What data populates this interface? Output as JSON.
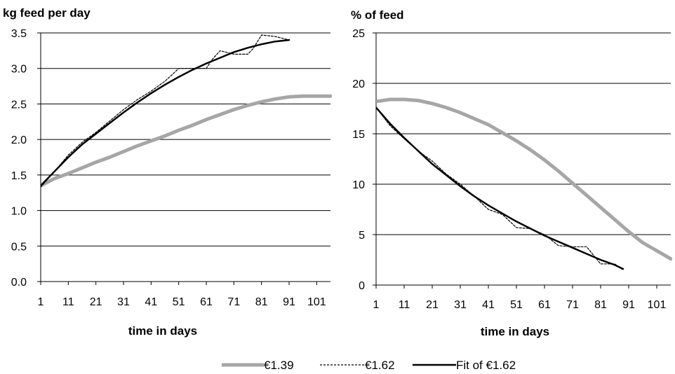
{
  "colors": {
    "series_1_39": "#a6a6a6",
    "series_1_62": "#000000",
    "fit_1_62": "#000000",
    "grid": "#000000",
    "background": "#ffffff"
  },
  "legend": {
    "position": "bottom",
    "items": [
      {
        "label": "€1.39",
        "style": "thick-gray-solid"
      },
      {
        "label": "€1.62",
        "style": "thin-black-dashed"
      },
      {
        "label": "Fit of €1.62",
        "style": "black-solid"
      }
    ]
  },
  "chart_data": [
    {
      "type": "line",
      "title": "kg feed per day",
      "xlabel": "time in days",
      "ylabel": "",
      "xlim": [
        1,
        106
      ],
      "ylim": [
        0,
        3.5
      ],
      "x_ticks": [
        1,
        11,
        21,
        31,
        41,
        51,
        61,
        71,
        81,
        91,
        101
      ],
      "y_ticks": [
        "0.0",
        "0.5",
        "1.0",
        "1.5",
        "2.0",
        "2.5",
        "3.0",
        "3.5"
      ],
      "grid": true,
      "series": [
        {
          "name": "€1.39",
          "x": [
            1,
            6,
            11,
            16,
            21,
            26,
            31,
            36,
            41,
            46,
            51,
            56,
            61,
            66,
            71,
            76,
            81,
            86,
            91,
            96,
            101,
            106
          ],
          "y": [
            1.35,
            1.45,
            1.52,
            1.6,
            1.68,
            1.75,
            1.83,
            1.91,
            1.98,
            2.05,
            2.13,
            2.2,
            2.28,
            2.35,
            2.42,
            2.48,
            2.53,
            2.57,
            2.6,
            2.61,
            2.61,
            2.61
          ]
        },
        {
          "name": "€1.62",
          "x": [
            1,
            6,
            11,
            16,
            21,
            26,
            31,
            36,
            41,
            46,
            48,
            51,
            56,
            61,
            63,
            66,
            71,
            76,
            78,
            81,
            86,
            91
          ],
          "y": [
            1.33,
            1.55,
            1.78,
            1.96,
            2.1,
            2.26,
            2.42,
            2.56,
            2.68,
            2.82,
            2.89,
            3.0,
            3.0,
            3.0,
            3.12,
            3.25,
            3.2,
            3.2,
            3.28,
            3.47,
            3.45,
            3.4
          ]
        },
        {
          "name": "Fit of €1.62",
          "x": [
            1,
            6,
            11,
            16,
            21,
            26,
            31,
            36,
            41,
            46,
            51,
            56,
            61,
            66,
            71,
            76,
            81,
            86,
            91
          ],
          "y": [
            1.35,
            1.55,
            1.75,
            1.93,
            2.08,
            2.23,
            2.38,
            2.52,
            2.65,
            2.77,
            2.88,
            2.98,
            3.07,
            3.15,
            3.23,
            3.29,
            3.34,
            3.38,
            3.4
          ]
        }
      ]
    },
    {
      "type": "line",
      "title": "% of feed",
      "xlabel": "time in days",
      "ylabel": "",
      "xlim": [
        1,
        106
      ],
      "ylim": [
        0,
        25
      ],
      "x_ticks": [
        1,
        11,
        21,
        31,
        41,
        51,
        61,
        71,
        81,
        91,
        101
      ],
      "y_ticks": [
        "0",
        "5",
        "10",
        "15",
        "20",
        "25"
      ],
      "grid": true,
      "series": [
        {
          "name": "€1.39",
          "x": [
            1,
            6,
            11,
            16,
            21,
            26,
            31,
            36,
            41,
            46,
            51,
            56,
            61,
            66,
            71,
            76,
            81,
            86,
            91,
            96,
            101,
            106
          ],
          "y": [
            18.2,
            18.4,
            18.4,
            18.3,
            18.0,
            17.6,
            17.1,
            16.5,
            15.9,
            15.1,
            14.3,
            13.4,
            12.4,
            11.3,
            10.1,
            8.9,
            7.7,
            6.5,
            5.3,
            4.2,
            3.4,
            2.6
          ]
        },
        {
          "name": "€1.62",
          "x": [
            1,
            6,
            11,
            16,
            21,
            26,
            31,
            36,
            41,
            46,
            51,
            56,
            61,
            66,
            71,
            76,
            81,
            86,
            89
          ],
          "y": [
            17.6,
            15.8,
            14.5,
            13.3,
            12.3,
            11.0,
            10.0,
            8.8,
            7.5,
            7.0,
            5.7,
            5.6,
            5.0,
            3.9,
            3.8,
            3.8,
            2.1,
            2.1,
            1.5
          ]
        },
        {
          "name": "Fit of €1.62",
          "x": [
            1,
            6,
            11,
            16,
            21,
            26,
            31,
            36,
            41,
            46,
            51,
            56,
            61,
            66,
            71,
            76,
            81,
            86,
            89
          ],
          "y": [
            17.6,
            16.0,
            14.6,
            13.3,
            12.0,
            10.9,
            9.8,
            8.8,
            7.9,
            7.1,
            6.3,
            5.6,
            4.9,
            4.3,
            3.7,
            3.1,
            2.5,
            2.0,
            1.6
          ]
        }
      ]
    }
  ]
}
